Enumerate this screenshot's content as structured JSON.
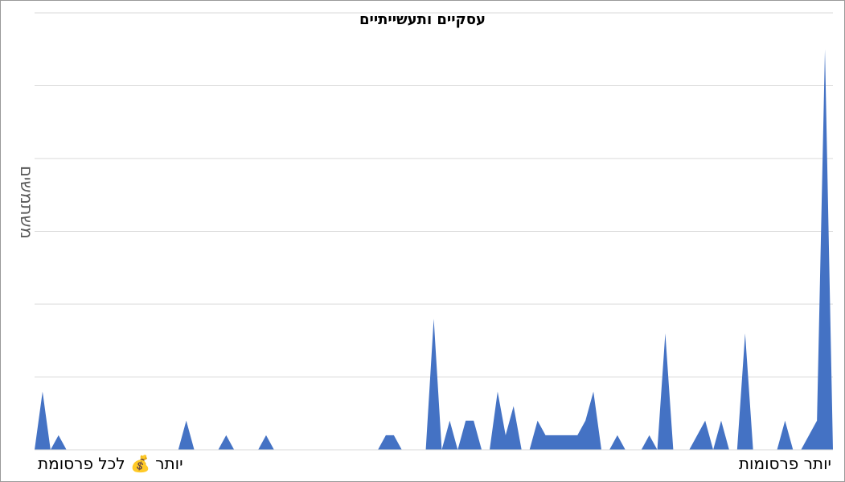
{
  "chart_data": {
    "type": "area",
    "title": "עסקיים ותעשייתיים",
    "ylabel": "משתמשים",
    "xlabel_left": "יותר 💰 לכל פרסומת",
    "xlabel_right": "יותר פרסומות",
    "color": "#4472C4",
    "grid": true,
    "ylim": [
      0,
      60
    ],
    "x": [
      0,
      1,
      2,
      3,
      4,
      5,
      6,
      7,
      8,
      9,
      10,
      11,
      12,
      13,
      14,
      15,
      16,
      17,
      18,
      19,
      20,
      21,
      22,
      23,
      24,
      25,
      26,
      27,
      28,
      29,
      30,
      31,
      32,
      33,
      34,
      35,
      36,
      37,
      38,
      39,
      40,
      41,
      42,
      43,
      44,
      45,
      46,
      47,
      48,
      49,
      50,
      51,
      52,
      53,
      54,
      55,
      56,
      57,
      58,
      59,
      60,
      61,
      62,
      63,
      64,
      65,
      66,
      67,
      68,
      69,
      70,
      71,
      72,
      73,
      74,
      75,
      76,
      77,
      78,
      79,
      80,
      81,
      82,
      83,
      84,
      85,
      86,
      87,
      88,
      89,
      90,
      91,
      92,
      93,
      94,
      95,
      96,
      97,
      98,
      99,
      100
    ],
    "values": [
      0,
      8,
      0,
      2,
      0,
      0,
      0,
      0,
      0,
      0,
      0,
      0,
      0,
      0,
      0,
      0,
      0,
      0,
      0,
      4,
      0,
      0,
      0,
      0,
      2,
      0,
      0,
      0,
      0,
      2,
      0,
      0,
      0,
      0,
      0,
      0,
      0,
      0,
      0,
      0,
      0,
      0,
      0,
      0,
      2,
      2,
      0,
      0,
      0,
      0,
      18,
      0,
      4,
      0,
      4,
      4,
      0,
      0,
      8,
      2,
      6,
      0,
      0,
      4,
      2,
      2,
      2,
      2,
      2,
      4,
      8,
      0,
      0,
      2,
      0,
      0,
      0,
      2,
      0,
      16,
      0,
      0,
      0,
      2,
      4,
      0,
      4,
      0,
      0,
      16,
      0,
      0,
      0,
      0,
      4,
      0,
      0,
      2,
      4,
      55,
      0
    ]
  }
}
